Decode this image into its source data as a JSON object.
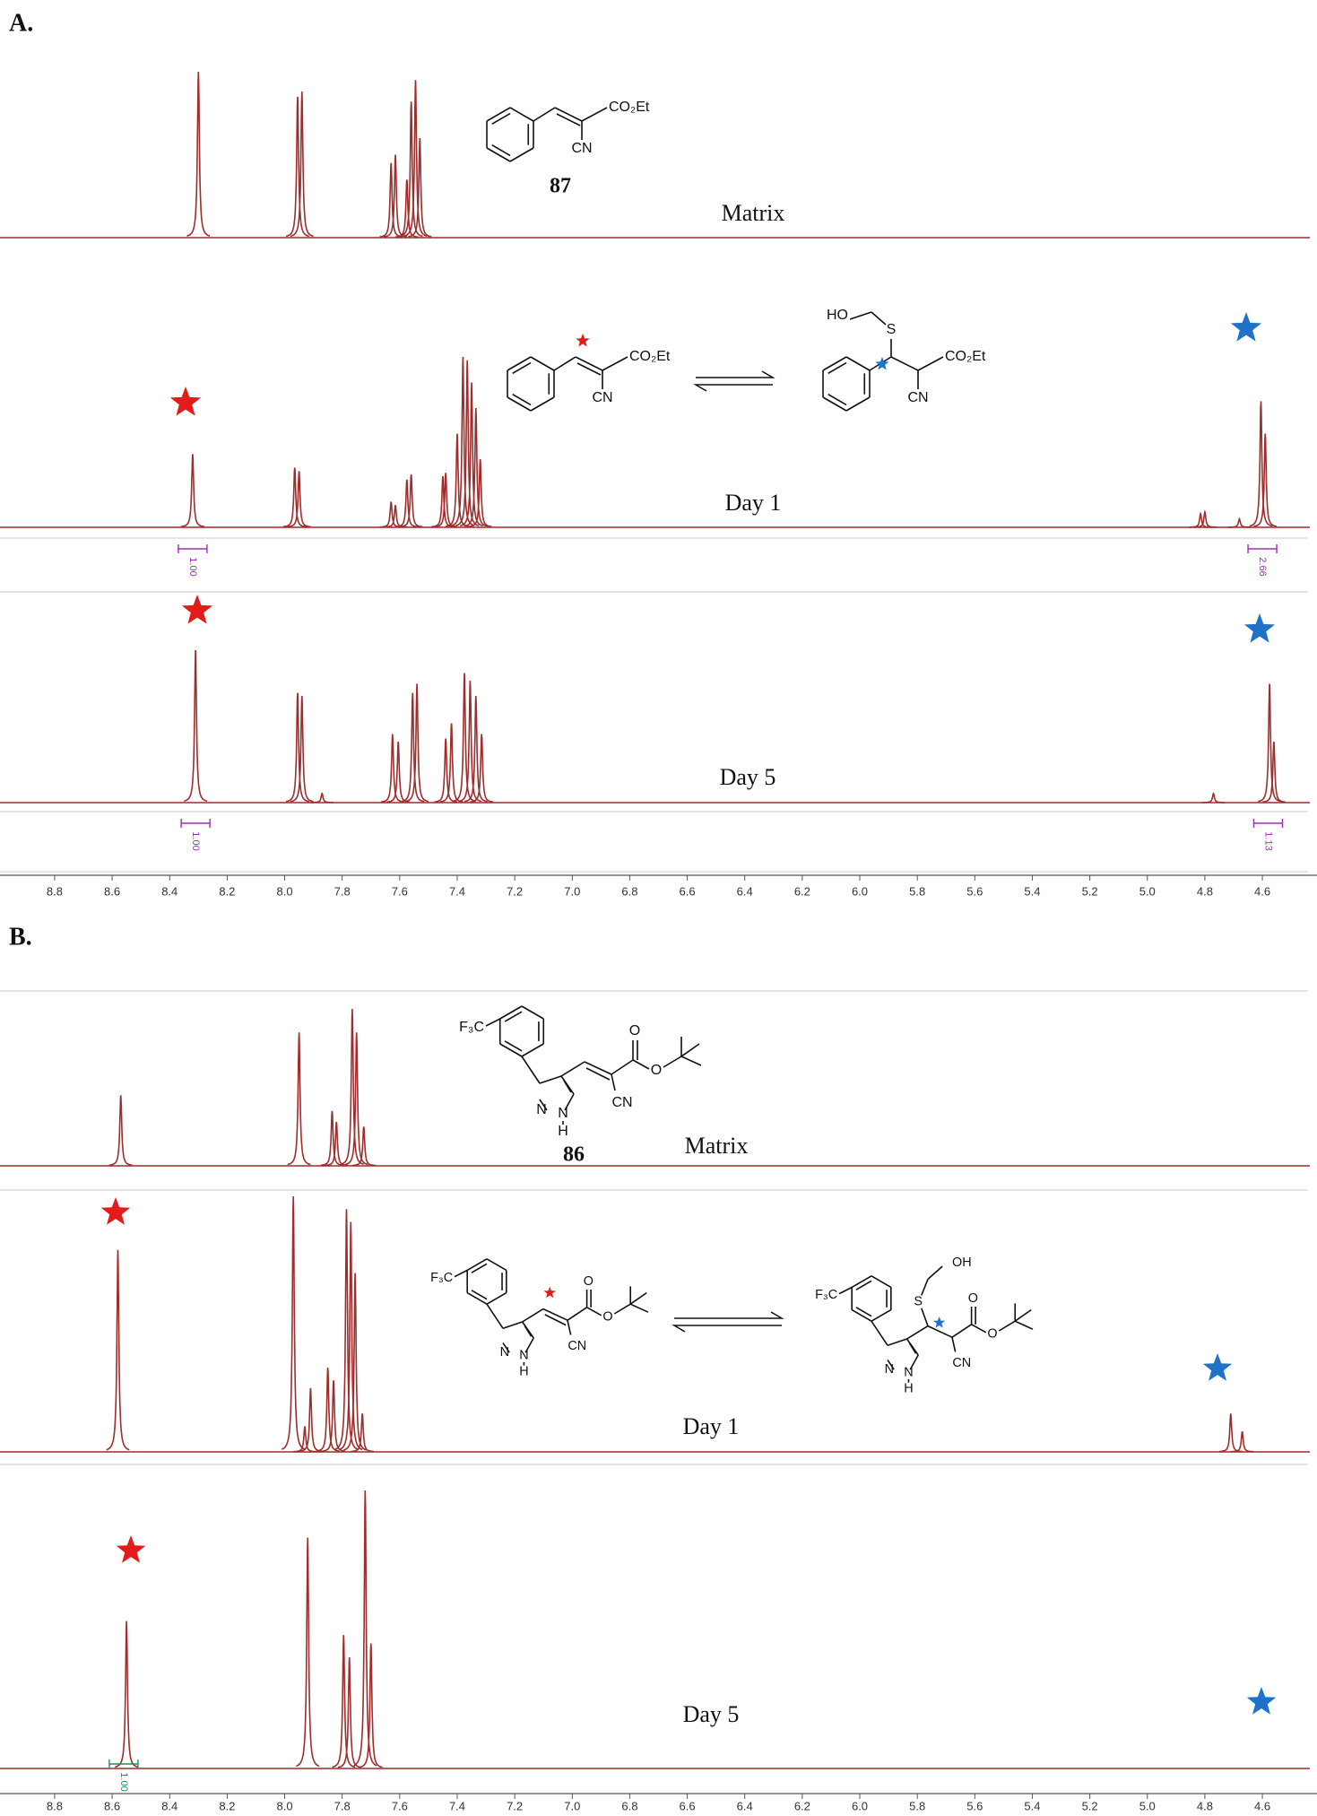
{
  "chart_data": [
    {
      "type": "spectrum",
      "title": "A.",
      "xlim": [
        8.99,
        4.41
      ],
      "ylim": [
        0,
        100
      ],
      "color": "#a02c2c",
      "xticks": [
        8.8,
        8.6,
        8.4,
        8.2,
        {
          "value": 8,
          "label": "8.0"
        },
        7.8,
        7.6,
        7.4,
        7.2,
        {
          "value": 7,
          "label": "7.0"
        },
        6.8,
        6.6,
        6.4,
        6.2,
        {
          "value": 6,
          "label": "6.0"
        },
        5.8,
        5.6,
        5.4,
        5.2,
        {
          "value": 5,
          "label": "5.0"
        },
        4.8,
        4.6
      ],
      "structures": [
        {
          "labels": [
            "CO₂Et",
            "CN"
          ],
          "compound": "87"
        },
        {
          "labels": [
            "CO₂Et",
            "CN"
          ]
        },
        {
          "labels": [
            "CO₂Et",
            "CN",
            "S",
            "HO"
          ]
        }
      ],
      "series": [
        {
          "name": "Matrix",
          "x": [
            8.3,
            7.955,
            7.94,
            7.63,
            7.615,
            7.575,
            7.56,
            7.545,
            7.53
          ],
          "values": [
            100,
            85,
            88,
            45,
            50,
            35,
            82,
            95,
            60
          ]
        },
        {
          "name": "Day 1",
          "x": [
            8.32,
            7.965,
            7.95,
            7.63,
            7.615,
            7.575,
            7.56,
            7.45,
            7.44,
            7.4,
            7.38,
            7.365,
            7.35,
            7.335,
            7.32,
            4.815,
            4.8,
            4.68,
            4.605,
            4.59
          ],
          "values": [
            43,
            35,
            33,
            15,
            13,
            28,
            31,
            30,
            32,
            55,
            100,
            98,
            85,
            70,
            40,
            8,
            9,
            5,
            74,
            55
          ],
          "integral_color": "#9b30b0",
          "integrals": [
            {
              "value": 1,
              "label": "1.00",
              "x": 8.32
            },
            {
              "value": 2.66,
              "x": 4.6
            }
          ]
        },
        {
          "name": "Day 5",
          "x": [
            8.31,
            7.955,
            7.94,
            7.87,
            7.625,
            7.605,
            7.555,
            7.54,
            7.44,
            7.42,
            7.375,
            7.355,
            7.335,
            7.315,
            4.77,
            4.575,
            4.56
          ],
          "values": [
            100,
            72,
            70,
            6,
            45,
            40,
            72,
            78,
            42,
            52,
            85,
            80,
            70,
            45,
            6,
            78,
            40
          ],
          "integral_color": "#9b30b0",
          "integrals": [
            {
              "value": 1,
              "label": "1.00",
              "x": 8.31
            },
            {
              "value": 1.13,
              "x": 4.58
            }
          ]
        }
      ]
    },
    {
      "type": "spectrum",
      "title": "B.",
      "xlim": [
        8.99,
        4.41
      ],
      "ylim": [
        0,
        100
      ],
      "color": "#a02c2c",
      "xticks": [
        8.8,
        8.6,
        8.4,
        8.2,
        {
          "value": 8,
          "label": "8.0"
        },
        7.8,
        7.6,
        7.4,
        7.2,
        {
          "value": 7,
          "label": "7.0"
        },
        6.8,
        6.6,
        6.4,
        6.2,
        {
          "value": 6,
          "label": "6.0"
        },
        5.8,
        5.6,
        5.4,
        5.2,
        {
          "value": 5,
          "label": "5.0"
        },
        4.8,
        4.6
      ],
      "structures": [
        {
          "labels": [
            "F₃C",
            "N",
            "N",
            "H",
            "O",
            "O",
            "CN"
          ],
          "compound": "86"
        },
        {
          "labels": [
            "F₃C",
            "N",
            "N",
            "H",
            "O",
            "O",
            "CN"
          ]
        },
        {
          "labels": [
            "F₃C",
            "N",
            "N",
            "H",
            "O",
            "O",
            "CN",
            "S",
            "OH"
          ]
        }
      ],
      "series": [
        {
          "name": "Matrix",
          "x": [
            8.57,
            7.95,
            7.835,
            7.82,
            7.765,
            7.75,
            7.725
          ],
          "values": [
            45,
            85,
            35,
            28,
            100,
            85,
            25
          ]
        },
        {
          "name": "Day 1",
          "x": [
            8.58,
            7.97,
            7.93,
            7.91,
            7.85,
            7.83,
            7.785,
            7.77,
            7.755,
            7.73,
            4.71,
            4.67
          ],
          "values": [
            79,
            100,
            10,
            25,
            33,
            28,
            95,
            90,
            70,
            15,
            15,
            8
          ]
        },
        {
          "name": "Day 5",
          "x": [
            8.55,
            7.92,
            7.795,
            7.775,
            7.72,
            7.7
          ],
          "values": [
            53,
            83,
            48,
            40,
            100,
            45
          ],
          "integral_color": "#2e8b57",
          "integrals": [
            {
              "value": 1,
              "label": "1.00",
              "x": 8.56
            }
          ]
        }
      ]
    }
  ]
}
